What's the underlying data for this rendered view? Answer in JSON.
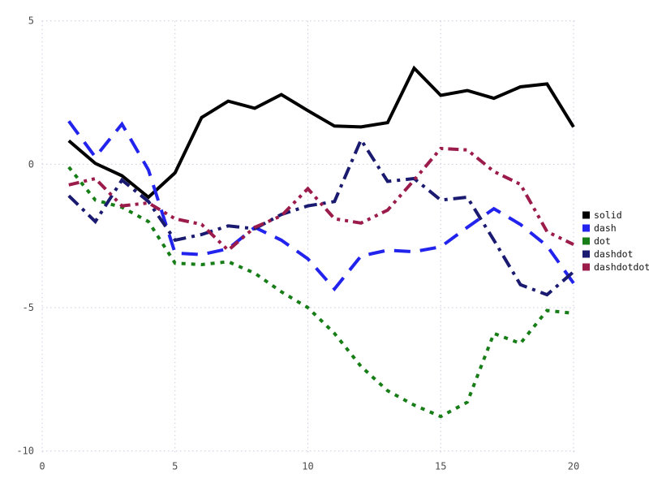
{
  "chart_data": {
    "type": "line",
    "x": [
      1,
      2,
      3,
      4,
      5,
      6,
      7,
      8,
      9,
      10,
      11,
      12,
      13,
      14,
      15,
      16,
      17,
      18,
      19,
      20
    ],
    "series": [
      {
        "name": "solid",
        "color": "#000000",
        "dash_style": "solid",
        "values": [
          0.82,
          0.03,
          -0.4,
          -1.15,
          -0.3,
          1.63,
          2.2,
          1.95,
          2.43,
          1.87,
          1.33,
          1.3,
          1.45,
          3.35,
          2.4,
          2.57,
          2.3,
          2.7,
          2.8,
          1.3
        ]
      },
      {
        "name": "dash",
        "color": "#2323ee",
        "dash_style": "dash",
        "values": [
          1.5,
          0.25,
          1.4,
          -0.2,
          -3.1,
          -3.15,
          -2.95,
          -2.2,
          -2.65,
          -3.3,
          -4.35,
          -3.2,
          -3.0,
          -3.05,
          -2.88,
          -2.2,
          -1.55,
          -2.1,
          -2.85,
          -4.15
        ]
      },
      {
        "name": "dot",
        "color": "#177d17",
        "dash_style": "dot",
        "values": [
          -0.1,
          -1.25,
          -1.5,
          -2.0,
          -3.45,
          -3.5,
          -3.4,
          -3.8,
          -4.45,
          -5.0,
          -5.9,
          -7.05,
          -7.9,
          -8.4,
          -8.8,
          -8.3,
          -5.9,
          -6.25,
          -5.1,
          -5.2
        ]
      },
      {
        "name": "dashdot",
        "color": "#1a1a70",
        "dash_style": "dashdot",
        "values": [
          -1.1,
          -2.0,
          -0.55,
          -1.3,
          -2.65,
          -2.45,
          -2.15,
          -2.25,
          -1.75,
          -1.45,
          -1.3,
          0.85,
          -0.6,
          -0.5,
          -1.25,
          -1.15,
          -2.65,
          -4.2,
          -4.55,
          -3.75
        ]
      },
      {
        "name": "dashdotdot",
        "color": "#9b1b4b",
        "dash_style": "dashdotdot",
        "values": [
          -0.72,
          -0.5,
          -1.45,
          -1.35,
          -1.9,
          -2.1,
          -3.0,
          -2.2,
          -1.8,
          -0.85,
          -1.9,
          -2.05,
          -1.6,
          -0.55,
          0.55,
          0.5,
          -0.25,
          -0.7,
          -2.35,
          -2.8
        ]
      }
    ],
    "title": "",
    "xlabel": "",
    "ylabel": "",
    "xlim": [
      0,
      20
    ],
    "ylim": [
      -10,
      5
    ],
    "x_ticks": [
      0,
      5,
      10,
      15,
      20
    ],
    "y_ticks": [
      5,
      0,
      -5,
      -10
    ],
    "grid": true,
    "grid_color": "#ccccdc",
    "legend_position": "right-outside"
  },
  "legend": {
    "items": [
      {
        "label": "solid",
        "color": "#000000"
      },
      {
        "label": "dash",
        "color": "#2323ee"
      },
      {
        "label": "dot",
        "color": "#177d17"
      },
      {
        "label": "dashdot",
        "color": "#1a1a70"
      },
      {
        "label": "dashdotdot",
        "color": "#9b1b4b"
      }
    ]
  },
  "axes": {
    "x_tick_labels": [
      "0",
      "5",
      "10",
      "15",
      "20"
    ],
    "y_tick_labels": [
      "5",
      "0",
      "-5",
      "-10"
    ]
  }
}
